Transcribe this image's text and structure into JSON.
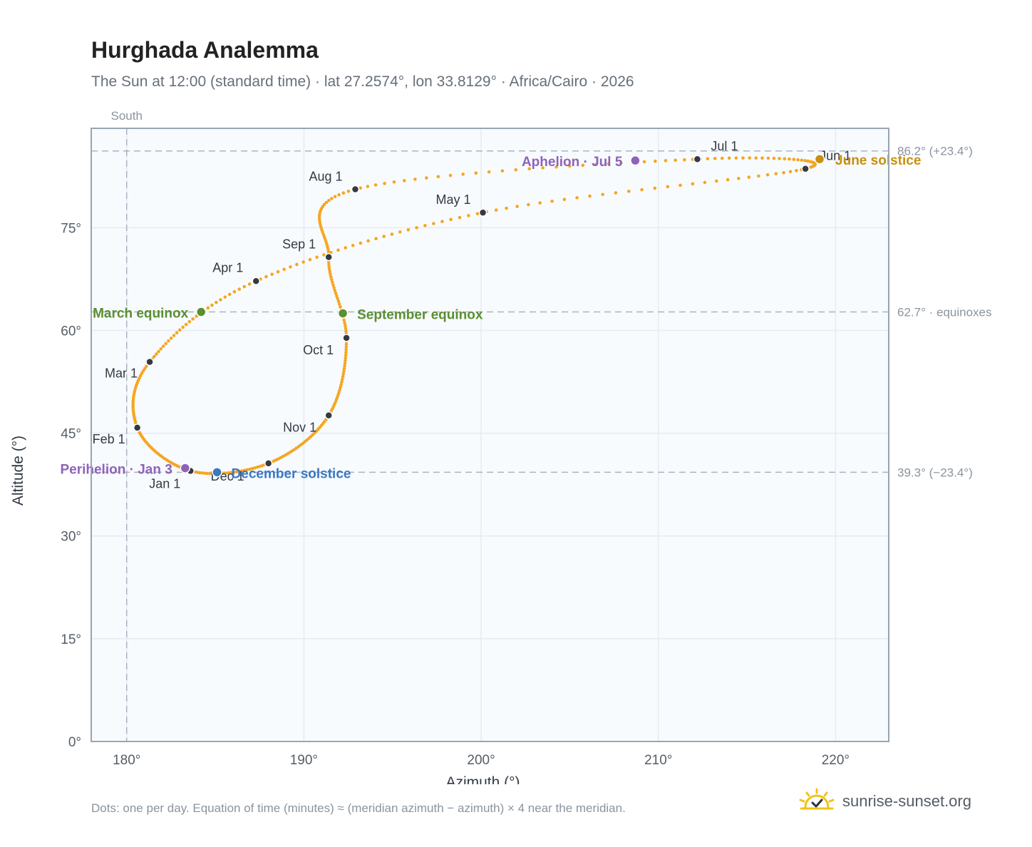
{
  "title": "Hurghada Analemma",
  "subtitle": "The Sun at 12:00 (standard time) · lat 27.2574°, lon 33.8129° · Africa/Cairo · 2026",
  "footer_note": "Dots: one per day. Equation of time (minutes) ≈ (meridian azimuth − azimuth) × 4 near the meridian.",
  "brand": {
    "name": "sunrise-sunset.org",
    "logo_icon": "sun-logo-icon"
  },
  "colors": {
    "curve": "#f5a623",
    "month": "#333a44",
    "equinox": "#5a8f32",
    "june": "#c8900e",
    "december": "#3a78c2",
    "apsis": "#8e63b8",
    "grid": "#e5ebf1",
    "plot_bg": "#f8fbfe",
    "border": "#9aa5b3"
  },
  "chart_data": {
    "type": "scatter",
    "xlabel": "Azimuth (°)",
    "ylabel": "Altitude (°)",
    "xlim": [
      178,
      223
    ],
    "ylim": [
      0,
      89.5
    ],
    "xticks": [
      180,
      190,
      200,
      210,
      220
    ],
    "yticks": [
      0,
      15,
      30,
      45,
      60,
      75
    ],
    "tick_suffix": "°",
    "grid": true,
    "meridian": {
      "azimuth": 180,
      "label": "South"
    },
    "reference_lines": [
      {
        "altitude": 86.2,
        "label": "86.2° (+23.4°)"
      },
      {
        "altitude": 62.7,
        "label": "62.7° · equinoxes"
      },
      {
        "altitude": 39.3,
        "label": "39.3° (−23.4°)"
      }
    ],
    "months": [
      {
        "label": "Jan 1",
        "azimuth": 183.6,
        "altitude": 39.5
      },
      {
        "label": "Feb 1",
        "azimuth": 180.6,
        "altitude": 45.8
      },
      {
        "label": "Mar 1",
        "azimuth": 181.3,
        "altitude": 55.4
      },
      {
        "label": "Apr 1",
        "azimuth": 187.3,
        "altitude": 67.2
      },
      {
        "label": "May 1",
        "azimuth": 200.1,
        "altitude": 77.2
      },
      {
        "label": "Jun 1",
        "azimuth": 218.3,
        "altitude": 83.6
      },
      {
        "label": "Jul 1",
        "azimuth": 212.2,
        "altitude": 85.0
      },
      {
        "label": "Aug 1",
        "azimuth": 192.9,
        "altitude": 80.6
      },
      {
        "label": "Sep 1",
        "azimuth": 191.4,
        "altitude": 70.7
      },
      {
        "label": "Oct 1",
        "azimuth": 192.4,
        "altitude": 58.9
      },
      {
        "label": "Nov 1",
        "azimuth": 191.4,
        "altitude": 47.6
      },
      {
        "label": "Dec 1",
        "azimuth": 188.0,
        "altitude": 40.6
      }
    ],
    "events": [
      {
        "label": "March equinox",
        "azimuth": 184.2,
        "altitude": 62.7,
        "color": "#5a8f32"
      },
      {
        "label": "June solstice",
        "azimuth": 219.1,
        "altitude": 85.0,
        "color": "#c8900e"
      },
      {
        "label": "September equinox",
        "azimuth": 192.2,
        "altitude": 62.5,
        "color": "#5a8f32"
      },
      {
        "label": "December solstice",
        "azimuth": 185.1,
        "altitude": 39.3,
        "color": "#3a78c2"
      },
      {
        "label": "Perihelion · Jan 3",
        "azimuth": 183.3,
        "altitude": 39.9,
        "color": "#8e63b8"
      },
      {
        "label": "Aphelion · Jul 5",
        "azimuth": 208.7,
        "altitude": 84.8,
        "color": "#8e63b8"
      }
    ]
  }
}
